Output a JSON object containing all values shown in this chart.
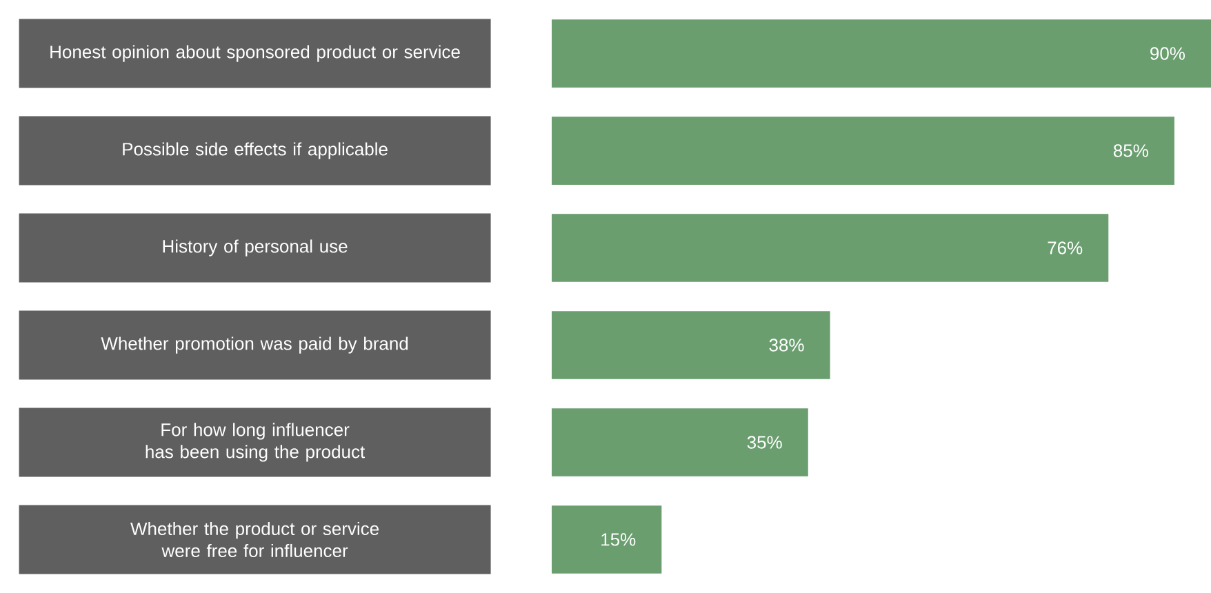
{
  "chart_data": {
    "type": "bar",
    "orientation": "horizontal",
    "color": "#6a9e6f",
    "categories": [
      "Honest opinion about sponsored product or service",
      "Possible side effects if applicable",
      "History of personal use",
      "Whether promotion was paid by brand",
      "For how long influencer has been using the product",
      "Whether the product or service were free for influencer"
    ],
    "values": [
      90,
      85,
      76,
      38,
      35,
      15
    ],
    "value_labels": [
      "90%",
      "85%",
      "76%",
      "38%",
      "35%",
      "15%"
    ]
  }
}
